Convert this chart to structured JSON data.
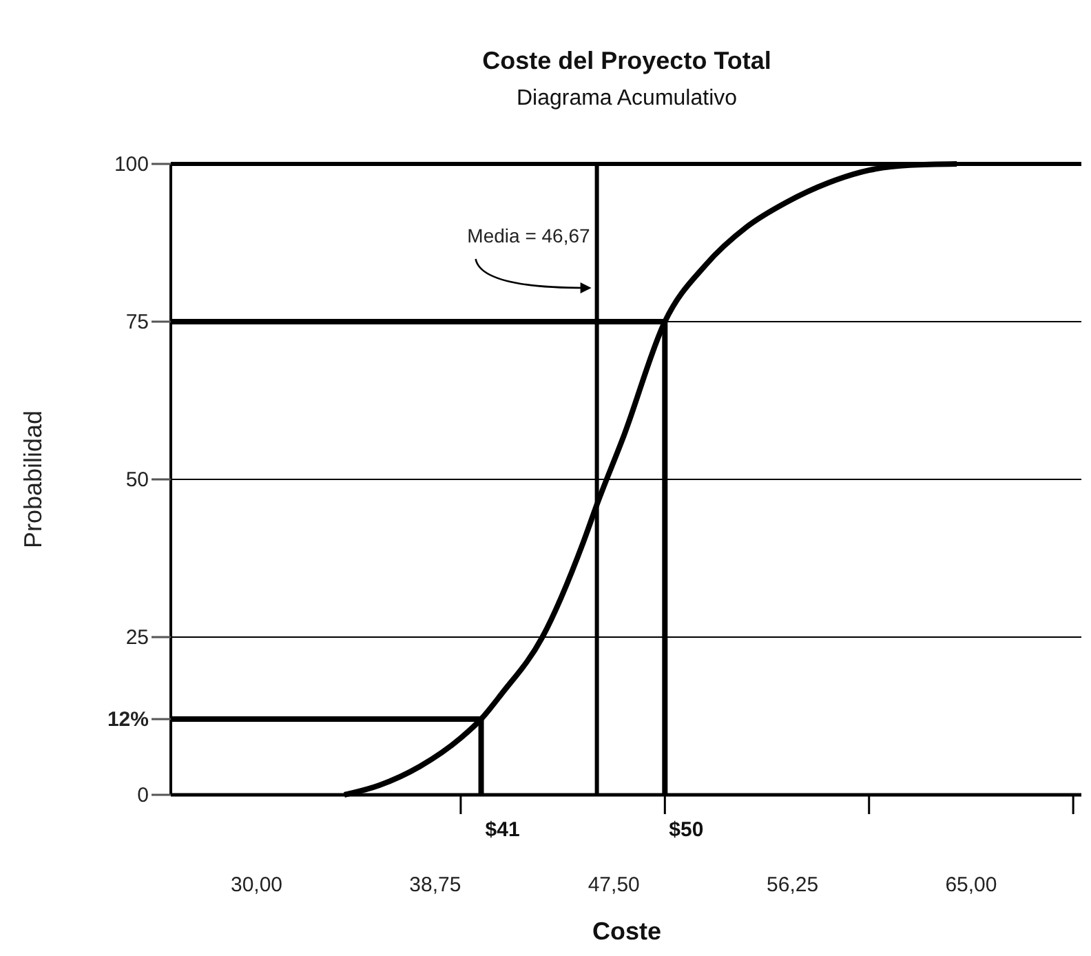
{
  "chart_data": {
    "type": "line",
    "title": "Coste del Proyecto Total",
    "subtitle": "Diagrama Acumulativo",
    "xlabel": "Coste",
    "ylabel": "Probabilidad",
    "xlim": [
      25.8,
      70.4
    ],
    "ylim": [
      0,
      100
    ],
    "xticks": [
      {
        "value": 30,
        "label": "30,00"
      },
      {
        "value": 38.75,
        "label": "38,75"
      },
      {
        "value": 47.5,
        "label": "47,50"
      },
      {
        "value": 56.25,
        "label": "56,25"
      },
      {
        "value": 65,
        "label": "65,00"
      },
      {
        "value": 40,
        "label": null
      },
      {
        "value": 50,
        "label": null
      },
      {
        "value": 60,
        "label": null
      },
      {
        "value": 70,
        "label": null
      }
    ],
    "yticks": [
      0,
      25,
      50,
      75,
      100,
      {
        "value": 12,
        "label": "12%"
      }
    ],
    "grid": "y",
    "marker": "none",
    "line_style": "solid",
    "series": [
      {
        "color": "#000000",
        "x": [
          34.3,
          36,
          38,
          40,
          41,
          42,
          44,
          46,
          46.67,
          48,
          50,
          52,
          54,
          56,
          58,
          60,
          62,
          64.3
        ],
        "values": [
          0,
          1.5,
          4.5,
          9,
          12,
          16,
          25,
          40,
          46,
          57,
          75,
          84,
          90,
          94,
          97,
          99,
          99.8,
          100
        ]
      },
      {
        "color": "#000000",
        "x": [
          25.8,
          41,
          41
        ],
        "values": [
          12,
          12,
          0
        ]
      },
      {
        "color": "#000000",
        "x": [
          25.8,
          50,
          50
        ],
        "values": [
          75,
          75,
          0
        ]
      }
    ],
    "ref_lines": [
      {
        "axis": "x",
        "value": 46.67,
        "label": "Media = 46,67",
        "color": "#000000"
      }
    ],
    "annotations": [
      {
        "text": "$41",
        "x": 41,
        "y": 0
      },
      {
        "text": "$50",
        "x": 50,
        "y": 0
      }
    ]
  }
}
